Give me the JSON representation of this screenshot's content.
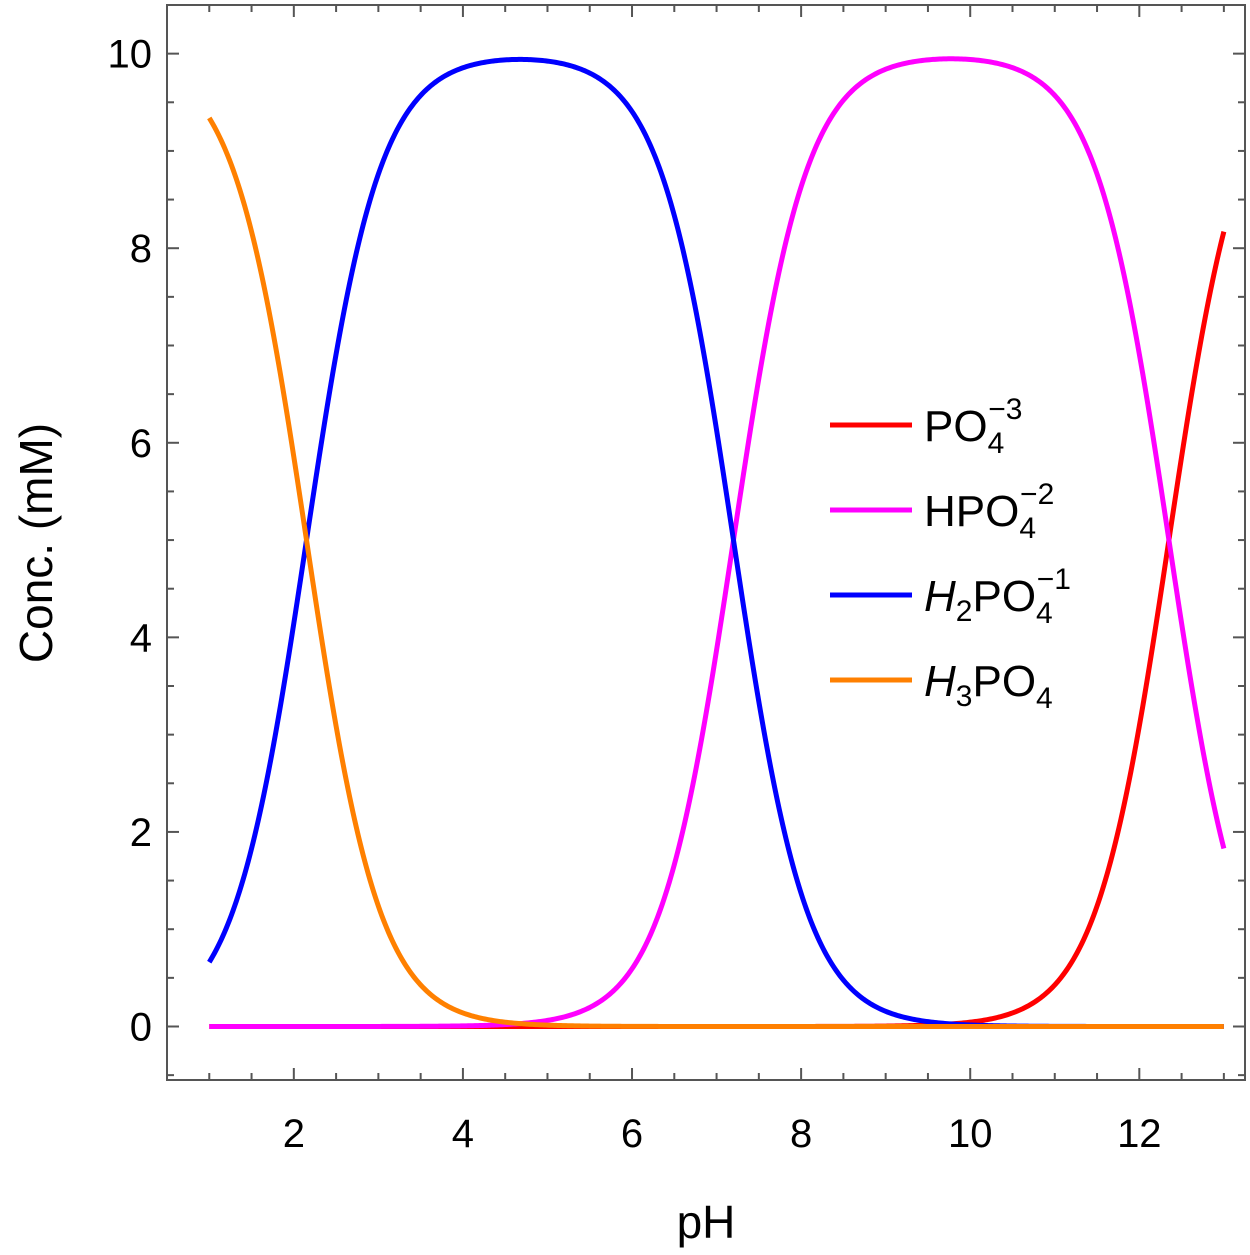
{
  "chart_data": {
    "type": "line",
    "xlabel": "pH",
    "ylabel": "Conc. (mM)",
    "xlim": [
      0.5,
      13.25
    ],
    "ylim": [
      -0.55,
      10.5
    ],
    "x_ticks": [
      2,
      4,
      6,
      8,
      10,
      12
    ],
    "y_ticks": [
      0,
      2,
      4,
      6,
      8,
      10
    ],
    "x_tick_labels": [
      "2",
      "4",
      "6",
      "8",
      "10",
      "12"
    ],
    "y_tick_labels": [
      "0",
      "2",
      "4",
      "6",
      "8",
      "10"
    ],
    "x_minor_step": 0.5,
    "y_minor_step": 0.5,
    "grid": false,
    "legend_position": "right-middle",
    "total_concentration": 10,
    "pKa": [
      2.15,
      7.2,
      12.35
    ],
    "x": [
      1,
      1.5,
      2,
      2.5,
      3,
      3.5,
      4,
      4.5,
      5,
      5.5,
      6,
      6.5,
      7,
      7.5,
      8,
      8.5,
      9,
      9.5,
      10,
      10.5,
      11,
      11.5,
      12,
      12.5,
      13
    ],
    "series": [
      {
        "name": "PO4-3",
        "legend": {
          "base": "PO",
          "sub": "4",
          "sup": "−3",
          "italic_prefix": "",
          "prefix_sub": ""
        },
        "color": "#ff0000",
        "values": [
          0,
          0,
          0,
          0,
          0,
          0,
          0,
          0,
          0,
          0,
          0,
          0,
          0,
          0,
          0,
          0,
          0,
          0.01,
          0.04,
          0.14,
          0.43,
          1.24,
          3.09,
          5.86,
          8.17
        ]
      },
      {
        "name": "HPO4-2",
        "legend": {
          "base": "HPO",
          "sub": "4",
          "sup": "−2",
          "italic_prefix": "",
          "prefix_sub": ""
        },
        "color": "#ff00ff",
        "values": [
          0,
          0,
          0,
          0,
          0,
          0,
          0,
          0.02,
          0.06,
          0.2,
          0.59,
          1.66,
          3.87,
          6.66,
          8.62,
          9.51,
          9.8,
          9.86,
          9.83,
          9.67,
          9.54,
          8.74,
          6.91,
          4.14,
          1.83
        ]
      },
      {
        "name": "H2PO4-1",
        "legend": {
          "base": "PO",
          "sub": "4",
          "sup": "−1",
          "italic_prefix": "H",
          "prefix_sub": "2"
        },
        "color": "#0000ff",
        "values": [
          0.66,
          1.82,
          4.15,
          6.91,
          8.76,
          9.56,
          9.83,
          9.91,
          9.93,
          9.79,
          9.4,
          8.34,
          6.13,
          3.33,
          1.38,
          0.49,
          0.2,
          0.13,
          0.13,
          0.19,
          0.03,
          0.02,
          0,
          0,
          0
        ]
      },
      {
        "name": "H3PO4",
        "legend": {
          "base": "PO",
          "sub": "4",
          "sup": "",
          "italic_prefix": "H",
          "prefix_sub": "3"
        },
        "color": "#ff8000",
        "values": [
          9.34,
          8.18,
          5.85,
          3.09,
          1.24,
          0.44,
          0.15,
          0.05,
          0.02,
          0.01,
          0,
          0,
          0,
          0,
          0,
          0,
          0,
          0,
          0,
          0,
          0,
          0,
          0,
          0,
          0
        ]
      }
    ]
  }
}
